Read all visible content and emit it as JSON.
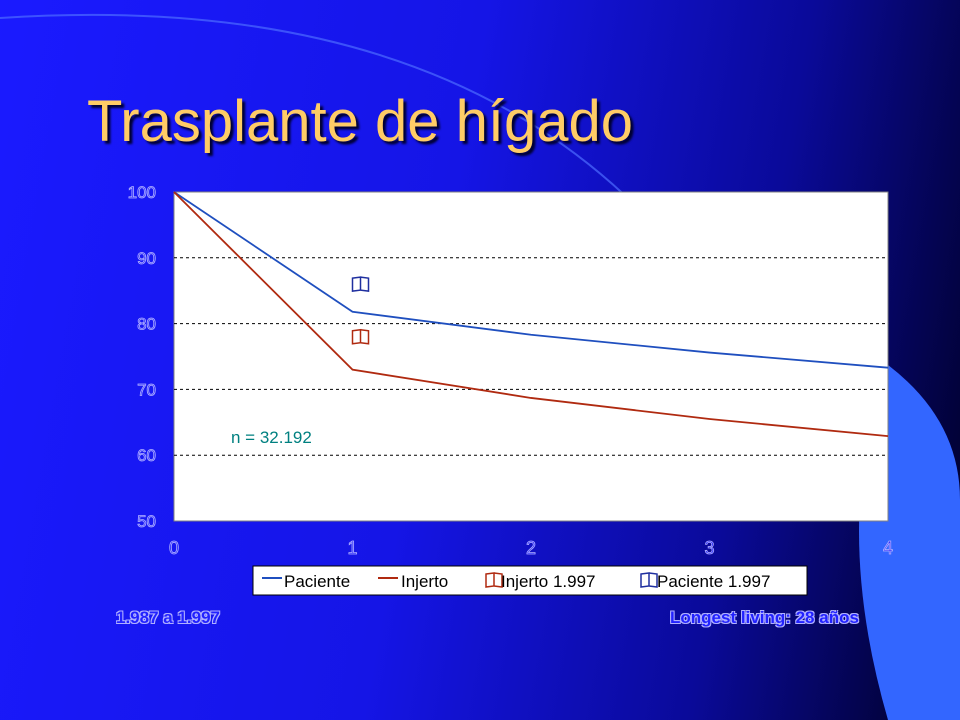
{
  "slide": {
    "title": "Trasplante de hígado",
    "annotation": "n = 32.192",
    "footer_left": "1.987 a 1.997",
    "footer_right": "Longest living: 28 años"
  },
  "colors": {
    "paciente": "#1f4fbf",
    "injerto": "#b02a10",
    "annotation": "#008080",
    "legend_marker": "#b02a10",
    "legend_marker_paciente": "#1f2f9f"
  },
  "chart_data": {
    "type": "line",
    "x": [
      0,
      1,
      2,
      3,
      4
    ],
    "xlim": [
      0,
      4
    ],
    "ylim": [
      50,
      100
    ],
    "xticks": [
      "0",
      "1",
      "2",
      "3",
      "4"
    ],
    "yticks": [
      "50",
      "60",
      "70",
      "80",
      "90",
      "100"
    ],
    "grid": "horizontal dashed",
    "legend_position": "bottom",
    "series": [
      {
        "name": "Paciente",
        "values": [
          100,
          81.8,
          78.3,
          75.6,
          73.3
        ],
        "style": "line"
      },
      {
        "name": "Injerto",
        "values": [
          100,
          73.0,
          68.7,
          65.5,
          62.9
        ],
        "style": "line"
      },
      {
        "name": "Injerto 1.997",
        "points": [
          {
            "x": 1,
            "y": 78
          }
        ],
        "style": "marker"
      },
      {
        "name": "Paciente 1.997",
        "points": [
          {
            "x": 1,
            "y": 86
          }
        ],
        "style": "marker"
      }
    ]
  }
}
